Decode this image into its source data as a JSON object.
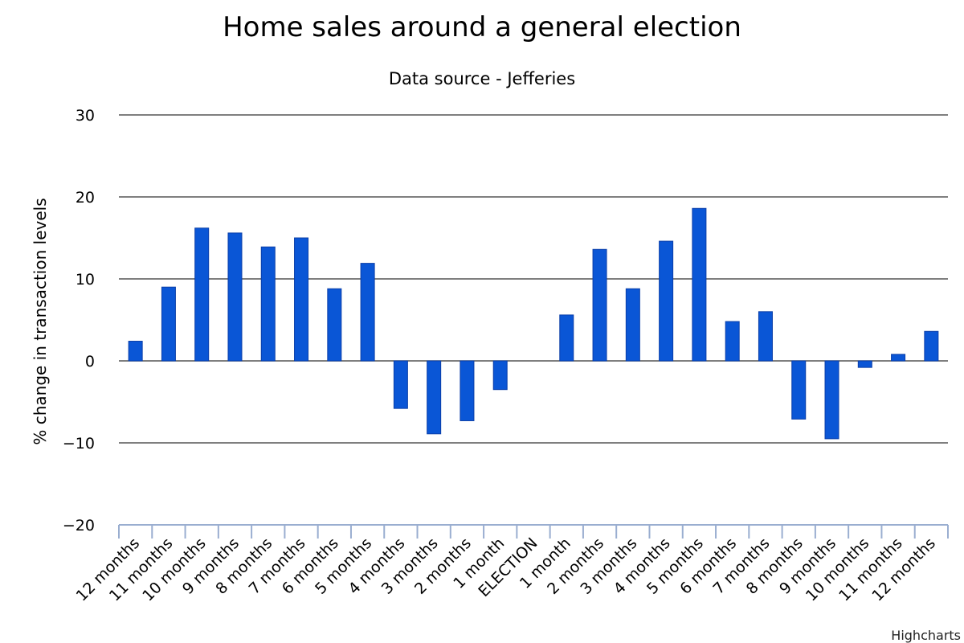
{
  "chart_data": {
    "type": "bar",
    "title": "Home sales around a general election",
    "subtitle": "Data source - Jefferies",
    "xlabel": "",
    "ylabel": "% change in transaction levels",
    "ylim": [
      -20,
      30
    ],
    "yticks": [
      30,
      20,
      10,
      0,
      -10,
      -20
    ],
    "grid": true,
    "categories": [
      "12 months",
      "11 months",
      "10 months",
      "9 months",
      "8 months",
      "7 months",
      "6 months",
      "5 months",
      "4 months",
      "3 months",
      "2 months",
      "1 month",
      "ELECTION",
      "1 month",
      "2 months",
      "3 months",
      "4 months",
      "5 months",
      "6 months",
      "7 months",
      "8 months",
      "9 months",
      "10 months",
      "11 months",
      "12 months"
    ],
    "values": [
      2.4,
      9.0,
      16.2,
      15.6,
      13.9,
      15.0,
      8.8,
      11.9,
      -5.8,
      -8.9,
      -7.3,
      -3.5,
      0,
      5.6,
      13.6,
      8.8,
      14.6,
      18.6,
      4.8,
      6.0,
      -7.1,
      -9.5,
      -0.8,
      0.8,
      3.6
    ],
    "bar_color": "#0a56d6",
    "credit": "Highcharts"
  }
}
